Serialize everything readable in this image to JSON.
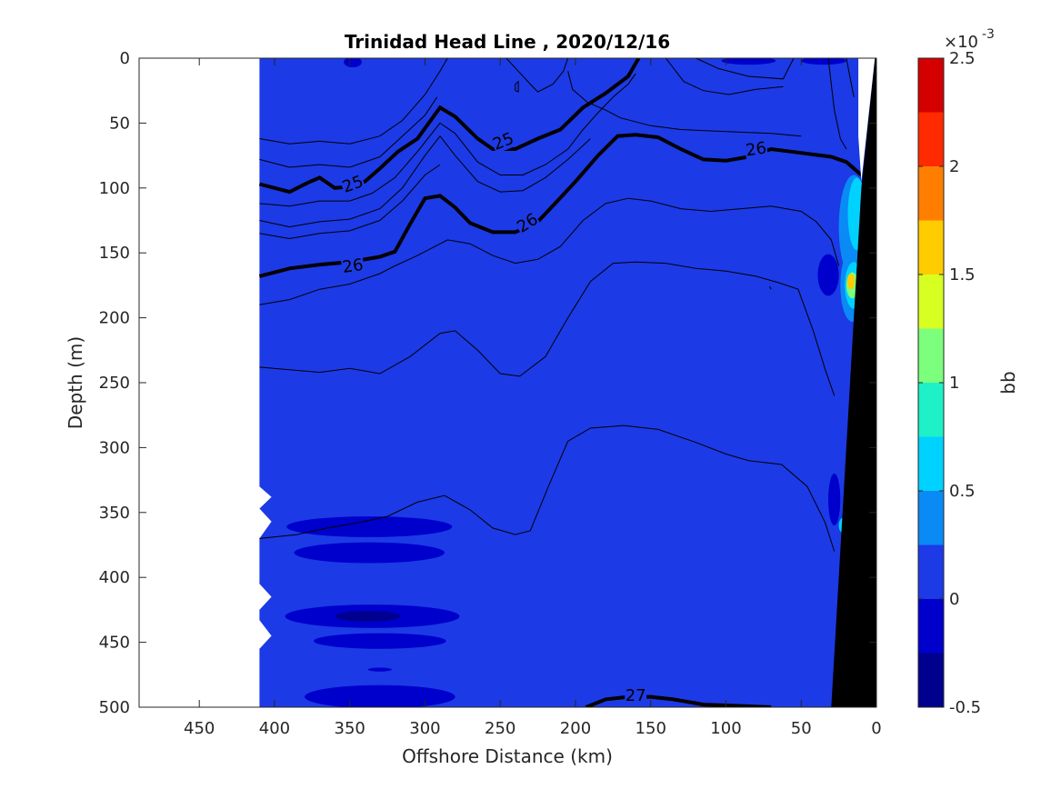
{
  "figure": {
    "title": "Trinidad Head Line , 2020/12/16"
  },
  "chart_data": {
    "type": "contour",
    "title": "Trinidad Head Line , 2020/12/16",
    "xlabel": "Offshore Distance (km)",
    "ylabel": "Depth (m)",
    "xlim": [
      490,
      0
    ],
    "ylim": [
      500,
      0
    ],
    "x_reversed": true,
    "y_reversed": true,
    "x_ticks": [
      450,
      400,
      350,
      300,
      250,
      200,
      150,
      100,
      50,
      0
    ],
    "y_ticks": [
      0,
      50,
      100,
      150,
      200,
      250,
      300,
      350,
      400,
      450,
      500
    ],
    "data_extent_x": [
      410,
      0
    ],
    "fill_variable": "bb",
    "colorbar": {
      "label": "bb",
      "exponent_label": "×10",
      "exponent_power": "-3",
      "range": [
        -0.5,
        2.5
      ],
      "ticks": [
        -0.5,
        0,
        0.5,
        1,
        1.5,
        2,
        2.5
      ],
      "tick_labels": [
        "-0.5",
        "0",
        "0.5",
        "1",
        "1.5",
        "2",
        "2.5"
      ],
      "levels": [
        -0.5,
        -0.25,
        0,
        0.25,
        0.5,
        0.75,
        1.0,
        1.25,
        1.5,
        1.75,
        2.0,
        2.25,
        2.5
      ],
      "colors": [
        "#00008f",
        "#0000cc",
        "#1c3ae6",
        "#0a8af5",
        "#00d2ff",
        "#1ef0c8",
        "#7cff7c",
        "#d8ff22",
        "#ffcc00",
        "#ff7e00",
        "#ff2a00",
        "#d40000"
      ]
    },
    "background_level_color": "#1c3ae6",
    "low_patches_color": "#0000cc",
    "lowest_patch_color": "#00008f",
    "bathymetry_color": "#000000",
    "isopycnal_lines": [
      {
        "label": "25",
        "bold": true,
        "points": [
          [
            410,
            97
          ],
          [
            390,
            103
          ],
          [
            378,
            96
          ],
          [
            370,
            92
          ],
          [
            360,
            100
          ],
          [
            350,
            99
          ],
          [
            340,
            95
          ],
          [
            330,
            85
          ],
          [
            318,
            72
          ],
          [
            305,
            62
          ],
          [
            290,
            38
          ],
          [
            280,
            45
          ],
          [
            265,
            62
          ],
          [
            255,
            70
          ],
          [
            240,
            70
          ],
          [
            225,
            62
          ],
          [
            210,
            55
          ],
          [
            195,
            38
          ],
          [
            180,
            27
          ],
          [
            165,
            14
          ],
          [
            158,
            0
          ]
        ]
      },
      {
        "label": "26",
        "bold": true,
        "points": [
          [
            410,
            168
          ],
          [
            390,
            162
          ],
          [
            370,
            159
          ],
          [
            350,
            157
          ],
          [
            330,
            153
          ],
          [
            320,
            149
          ],
          [
            310,
            128
          ],
          [
            300,
            108
          ],
          [
            290,
            106
          ],
          [
            280,
            115
          ],
          [
            270,
            127
          ],
          [
            255,
            134
          ],
          [
            240,
            134
          ],
          [
            225,
            126
          ],
          [
            212,
            110
          ],
          [
            200,
            95
          ],
          [
            185,
            75
          ],
          [
            172,
            60
          ],
          [
            160,
            59
          ],
          [
            145,
            61
          ],
          [
            130,
            70
          ],
          [
            115,
            78
          ],
          [
            100,
            79
          ],
          [
            85,
            76
          ],
          [
            70,
            70
          ],
          [
            50,
            73
          ],
          [
            30,
            76
          ],
          [
            20,
            80
          ],
          [
            10,
            90
          ]
        ]
      },
      {
        "label": "27",
        "bold": true,
        "points": [
          [
            193,
            500
          ],
          [
            180,
            494
          ],
          [
            165,
            492
          ],
          [
            150,
            492
          ],
          [
            135,
            494
          ],
          [
            115,
            498
          ],
          [
            90,
            499
          ],
          [
            70,
            500
          ]
        ]
      }
    ],
    "contour_labels": [
      {
        "text": "25",
        "x": 348,
        "y": 97
      },
      {
        "text": "25",
        "x": 248,
        "y": 64
      },
      {
        "text": "26",
        "x": 348,
        "y": 160
      },
      {
        "text": "26",
        "x": 232,
        "y": 127
      },
      {
        "text": "26",
        "x": 80,
        "y": 70
      },
      {
        "text": "27",
        "x": 160,
        "y": 491
      }
    ]
  }
}
